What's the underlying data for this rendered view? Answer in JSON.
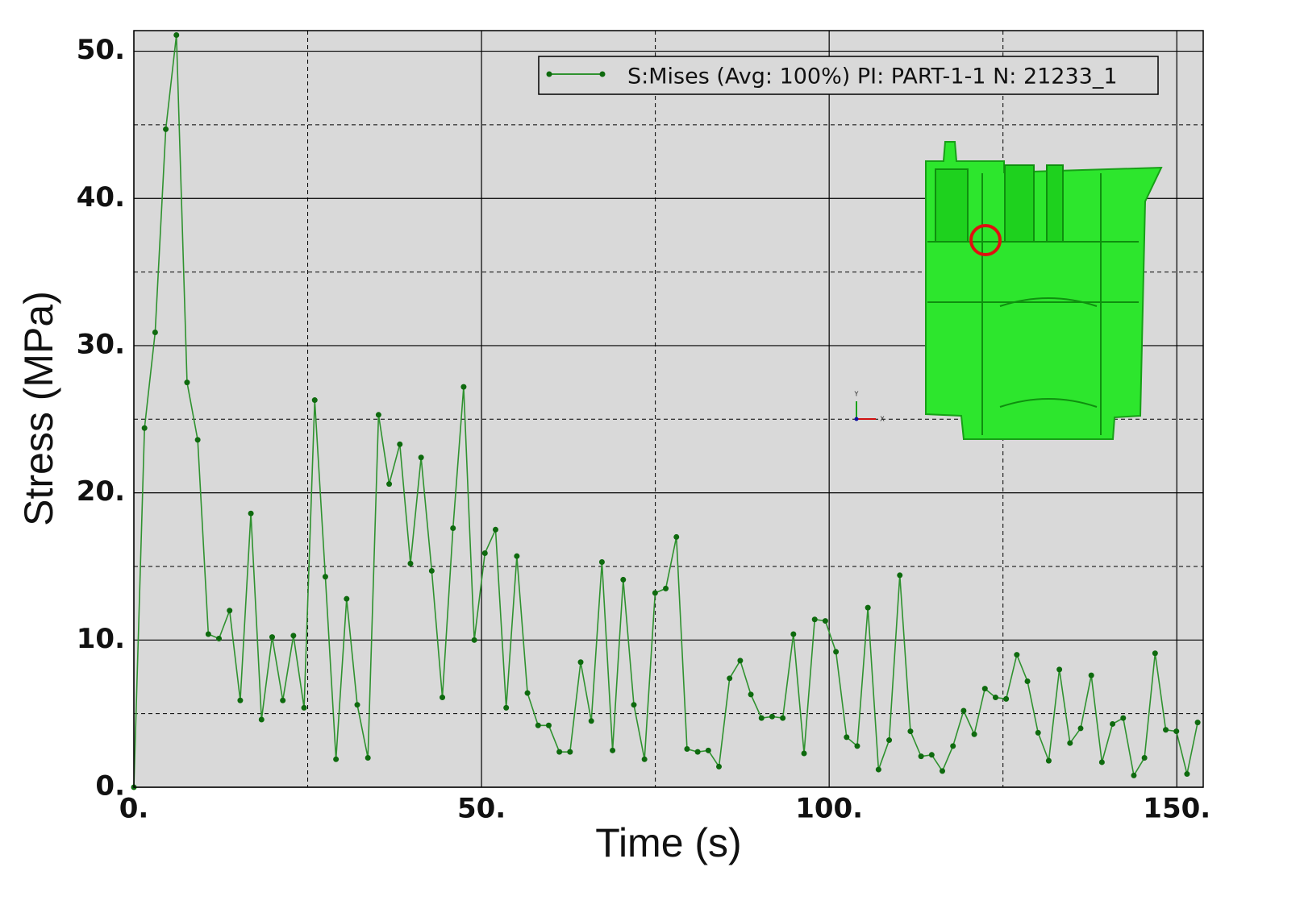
{
  "chart_data": {
    "type": "line",
    "x_label": "Time (s)",
    "y_label": "Stress (MPa)",
    "x": [
      0,
      1.53,
      3.06,
      4.59,
      6.12,
      7.65,
      9.18,
      10.71,
      12.24,
      13.77,
      15.3,
      16.83,
      18.36,
      19.89,
      21.42,
      22.95,
      24.48,
      26.01,
      27.54,
      29.07,
      30.6,
      32.13,
      33.66,
      35.19,
      36.72,
      38.25,
      39.78,
      41.31,
      42.84,
      44.37,
      45.9,
      47.43,
      48.96,
      50.49,
      52.02,
      53.55,
      55.08,
      56.61,
      58.14,
      59.67,
      61.2,
      62.73,
      64.26,
      65.79,
      67.32,
      68.85,
      70.38,
      71.91,
      73.44,
      74.97,
      76.5,
      78.03,
      79.56,
      81.09,
      82.62,
      84.15,
      85.68,
      87.21,
      88.74,
      90.27,
      91.8,
      93.33,
      94.86,
      96.39,
      97.92,
      99.45,
      100.98,
      102.51,
      104.04,
      105.57,
      107.1,
      108.63,
      110.16,
      111.69,
      113.22,
      114.75,
      116.28,
      117.81,
      119.34,
      120.87,
      122.4,
      123.93,
      125.46,
      126.99,
      128.52,
      130.05,
      131.58,
      133.11,
      134.64,
      136.17,
      137.7,
      139.23,
      140.76,
      142.29,
      143.82,
      145.35,
      146.88,
      148.41,
      149.94,
      151.47,
      153.0
    ],
    "series": [
      {
        "name": "S:Mises (Avg: 100%) PI: PART-1-1 N: 21233_1",
        "color": "#2f922f",
        "marker_color": "#0e6a0e",
        "values": [
          0,
          24.4,
          30.9,
          44.7,
          51.1,
          27.5,
          23.6,
          10.4,
          10.1,
          12.0,
          5.9,
          18.6,
          4.6,
          10.2,
          5.9,
          10.3,
          5.4,
          26.3,
          14.3,
          1.9,
          12.8,
          5.6,
          2.0,
          25.3,
          20.6,
          23.3,
          15.2,
          22.4,
          14.7,
          6.1,
          17.6,
          27.2,
          10.0,
          15.9,
          17.5,
          5.4,
          15.7,
          6.4,
          4.2,
          4.2,
          2.4,
          2.4,
          8.5,
          4.5,
          15.3,
          2.5,
          14.1,
          5.6,
          1.9,
          13.2,
          13.5,
          17.0,
          2.6,
          2.4,
          2.5,
          1.4,
          7.4,
          8.6,
          6.3,
          4.7,
          4.8,
          4.7,
          10.4,
          2.3,
          11.4,
          11.3,
          9.2,
          3.4,
          2.8,
          12.2,
          1.2,
          3.2,
          14.4,
          3.8,
          2.1,
          2.2,
          1.1,
          2.8,
          5.2,
          3.6,
          6.7,
          6.1,
          6.0,
          9.0,
          7.2,
          3.7,
          1.8,
          8.0,
          3.0,
          4.0,
          7.6,
          1.7,
          4.3,
          4.7,
          0.8,
          2.0,
          9.1,
          3.9,
          3.8,
          0.9,
          4.4
        ]
      }
    ],
    "xlim": [
      0,
      153.8
    ],
    "ylim": [
      0,
      51.4
    ],
    "xticks": [
      {
        "value": 0,
        "label": "0."
      },
      {
        "value": 50,
        "label": "50."
      },
      {
        "value": 100,
        "label": "100."
      },
      {
        "value": 150,
        "label": "150."
      }
    ],
    "yticks": [
      {
        "value": 0,
        "label": "0."
      },
      {
        "value": 10,
        "label": "10."
      },
      {
        "value": 20,
        "label": "20."
      },
      {
        "value": 30,
        "label": "30."
      },
      {
        "value": 40,
        "label": "40."
      },
      {
        "value": 50,
        "label": "50."
      }
    ],
    "xminorticks": [
      25,
      75,
      125
    ],
    "yminorticks": [
      5,
      15,
      25,
      35,
      45
    ],
    "grid": true,
    "legend": "upper right",
    "triad_labels": [
      "Y",
      "X"
    ]
  }
}
